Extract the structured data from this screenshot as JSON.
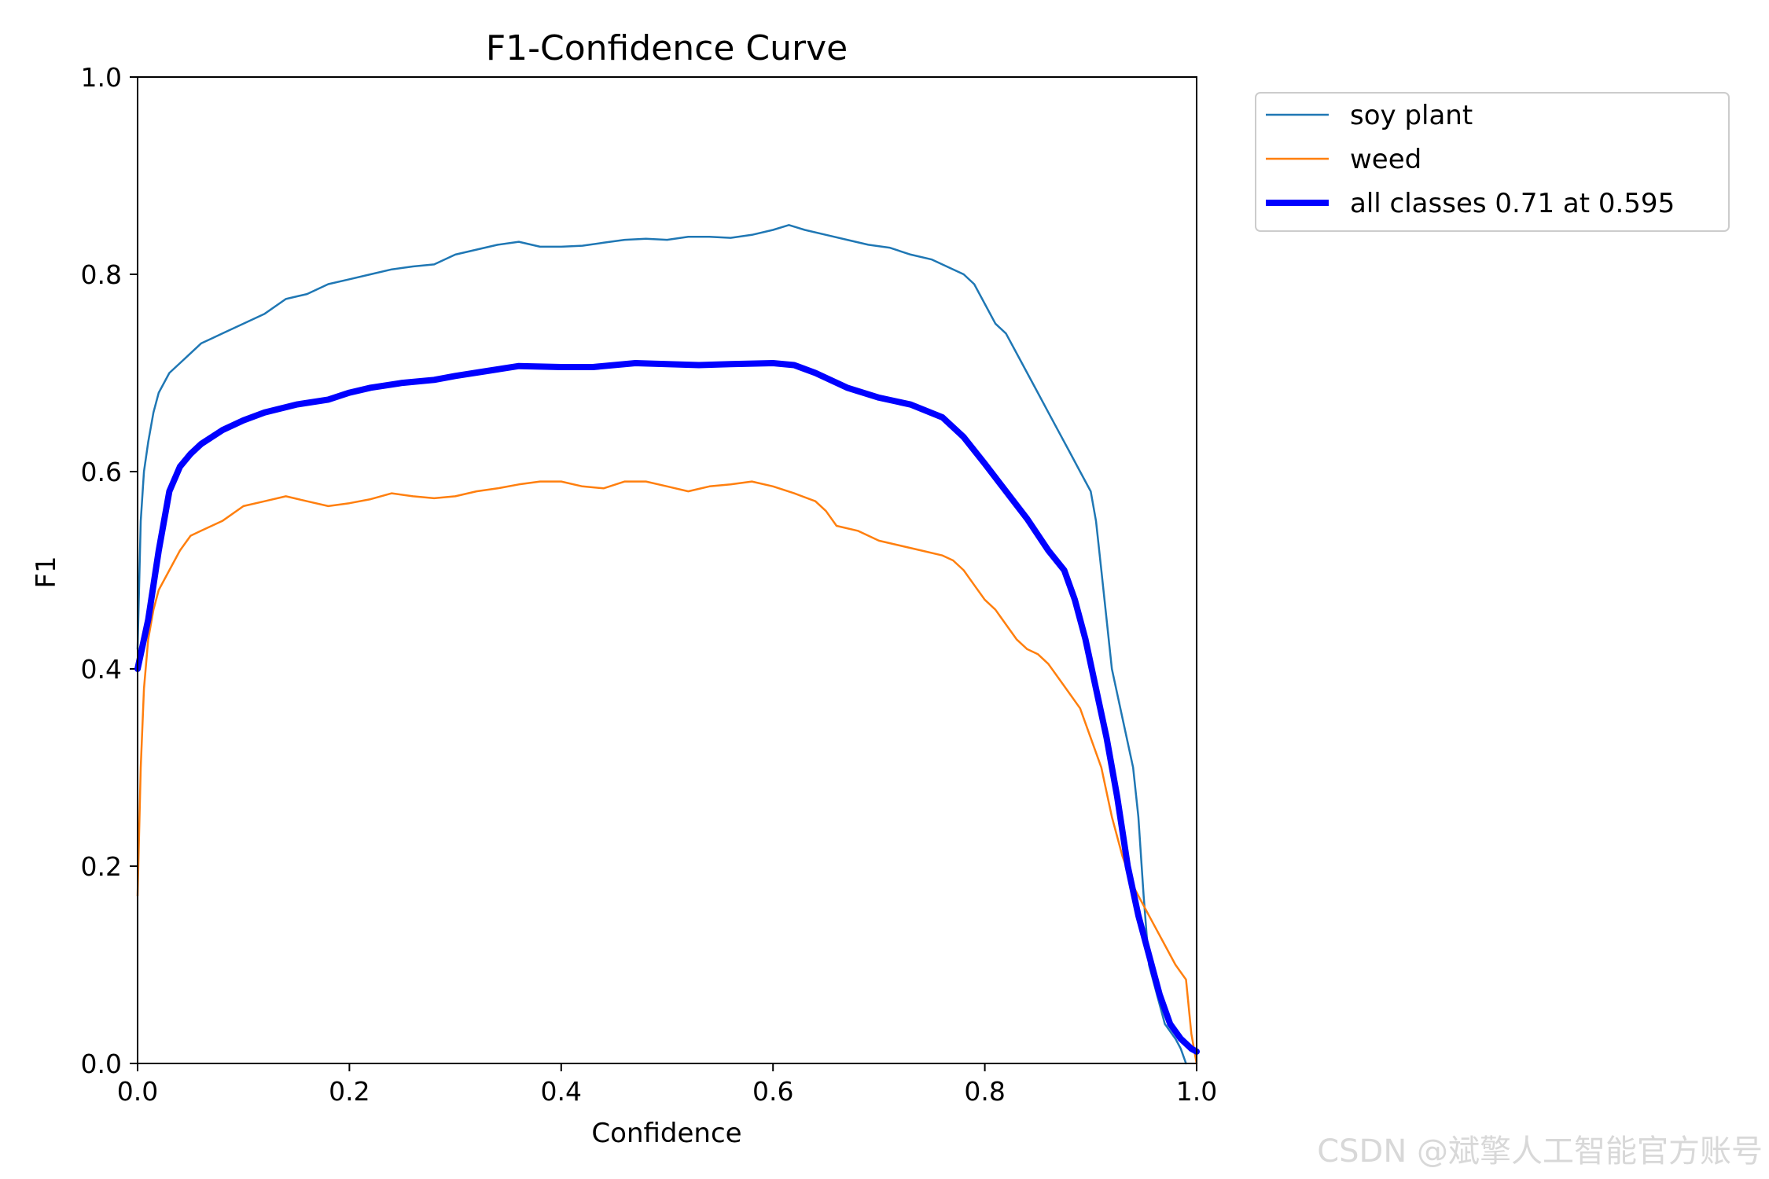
{
  "chart_data": {
    "type": "line",
    "title": "F1-Confidence Curve",
    "xlabel": "Confidence",
    "ylabel": "F1",
    "xlim": [
      0.0,
      1.0
    ],
    "ylim": [
      0.0,
      1.0
    ],
    "xticks": [
      "0.0",
      "0.2",
      "0.4",
      "0.6",
      "0.8",
      "1.0"
    ],
    "yticks": [
      "0.0",
      "0.2",
      "0.4",
      "0.6",
      "0.8",
      "1.0"
    ],
    "grid": false,
    "legend_position": "outside-top-right",
    "series": [
      {
        "name": "soy plant",
        "color": "#1f77b4",
        "style": "thin",
        "x": [
          0.0,
          0.003,
          0.006,
          0.01,
          0.015,
          0.02,
          0.03,
          0.04,
          0.05,
          0.06,
          0.07,
          0.08,
          0.1,
          0.12,
          0.14,
          0.16,
          0.18,
          0.2,
          0.22,
          0.24,
          0.26,
          0.28,
          0.3,
          0.32,
          0.34,
          0.36,
          0.38,
          0.4,
          0.42,
          0.44,
          0.46,
          0.48,
          0.5,
          0.52,
          0.54,
          0.56,
          0.58,
          0.6,
          0.615,
          0.63,
          0.65,
          0.67,
          0.69,
          0.71,
          0.73,
          0.75,
          0.77,
          0.78,
          0.79,
          0.8,
          0.81,
          0.82,
          0.83,
          0.84,
          0.85,
          0.86,
          0.87,
          0.88,
          0.89,
          0.9,
          0.905,
          0.91,
          0.915,
          0.92,
          0.93,
          0.94,
          0.945,
          0.95,
          0.955,
          0.96,
          0.97,
          0.98,
          0.985,
          0.99
        ],
        "y": [
          0.42,
          0.55,
          0.6,
          0.63,
          0.66,
          0.68,
          0.7,
          0.71,
          0.72,
          0.73,
          0.735,
          0.74,
          0.75,
          0.76,
          0.775,
          0.78,
          0.79,
          0.795,
          0.8,
          0.805,
          0.808,
          0.81,
          0.82,
          0.825,
          0.83,
          0.833,
          0.828,
          0.828,
          0.829,
          0.832,
          0.835,
          0.836,
          0.835,
          0.838,
          0.838,
          0.837,
          0.84,
          0.845,
          0.85,
          0.845,
          0.84,
          0.835,
          0.83,
          0.827,
          0.82,
          0.815,
          0.805,
          0.8,
          0.79,
          0.77,
          0.75,
          0.74,
          0.72,
          0.7,
          0.68,
          0.66,
          0.64,
          0.62,
          0.6,
          0.58,
          0.55,
          0.5,
          0.45,
          0.4,
          0.35,
          0.3,
          0.25,
          0.17,
          0.1,
          0.08,
          0.04,
          0.025,
          0.015,
          0.0
        ]
      },
      {
        "name": "weed",
        "color": "#ff7f0e",
        "style": "thin",
        "x": [
          0.0,
          0.003,
          0.006,
          0.01,
          0.015,
          0.02,
          0.03,
          0.04,
          0.05,
          0.06,
          0.07,
          0.08,
          0.1,
          0.12,
          0.14,
          0.16,
          0.18,
          0.2,
          0.22,
          0.24,
          0.26,
          0.28,
          0.3,
          0.32,
          0.34,
          0.36,
          0.38,
          0.4,
          0.42,
          0.44,
          0.46,
          0.48,
          0.5,
          0.52,
          0.54,
          0.56,
          0.58,
          0.6,
          0.62,
          0.64,
          0.65,
          0.66,
          0.68,
          0.7,
          0.72,
          0.74,
          0.76,
          0.77,
          0.78,
          0.79,
          0.8,
          0.81,
          0.82,
          0.83,
          0.84,
          0.85,
          0.86,
          0.87,
          0.88,
          0.89,
          0.9,
          0.91,
          0.92,
          0.93,
          0.94,
          0.95,
          0.96,
          0.97,
          0.98,
          0.99,
          0.995,
          1.0
        ],
        "y": [
          0.17,
          0.3,
          0.38,
          0.43,
          0.46,
          0.48,
          0.5,
          0.52,
          0.535,
          0.54,
          0.545,
          0.55,
          0.565,
          0.57,
          0.575,
          0.57,
          0.565,
          0.568,
          0.572,
          0.578,
          0.575,
          0.573,
          0.575,
          0.58,
          0.583,
          0.587,
          0.59,
          0.59,
          0.585,
          0.583,
          0.59,
          0.59,
          0.585,
          0.58,
          0.585,
          0.587,
          0.59,
          0.585,
          0.578,
          0.57,
          0.56,
          0.545,
          0.54,
          0.53,
          0.525,
          0.52,
          0.515,
          0.51,
          0.5,
          0.485,
          0.47,
          0.46,
          0.445,
          0.43,
          0.42,
          0.415,
          0.405,
          0.39,
          0.375,
          0.36,
          0.33,
          0.3,
          0.25,
          0.21,
          0.18,
          0.16,
          0.14,
          0.12,
          0.1,
          0.085,
          0.03,
          0.0
        ]
      },
      {
        "name": "all classes 0.71 at 0.595",
        "color": "#0000ff",
        "style": "thick",
        "x": [
          0.0,
          0.01,
          0.02,
          0.03,
          0.04,
          0.05,
          0.06,
          0.08,
          0.1,
          0.12,
          0.15,
          0.18,
          0.2,
          0.22,
          0.25,
          0.28,
          0.3,
          0.33,
          0.36,
          0.4,
          0.43,
          0.47,
          0.5,
          0.53,
          0.56,
          0.6,
          0.62,
          0.64,
          0.67,
          0.7,
          0.73,
          0.76,
          0.78,
          0.8,
          0.82,
          0.84,
          0.86,
          0.875,
          0.885,
          0.895,
          0.905,
          0.915,
          0.925,
          0.935,
          0.945,
          0.955,
          0.965,
          0.975,
          0.985,
          0.995,
          1.0
        ],
        "y": [
          0.4,
          0.45,
          0.52,
          0.58,
          0.605,
          0.618,
          0.628,
          0.642,
          0.652,
          0.66,
          0.668,
          0.673,
          0.68,
          0.685,
          0.69,
          0.693,
          0.697,
          0.702,
          0.707,
          0.706,
          0.706,
          0.71,
          0.709,
          0.708,
          0.709,
          0.71,
          0.708,
          0.7,
          0.685,
          0.675,
          0.668,
          0.655,
          0.635,
          0.608,
          0.58,
          0.552,
          0.52,
          0.5,
          0.47,
          0.43,
          0.38,
          0.33,
          0.27,
          0.2,
          0.15,
          0.11,
          0.07,
          0.04,
          0.025,
          0.015,
          0.012
        ]
      }
    ]
  },
  "watermark": "CSDN @斌擎人工智能官方账号"
}
